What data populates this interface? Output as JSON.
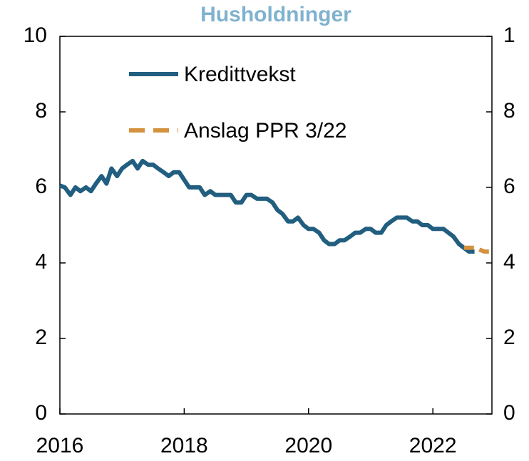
{
  "chart_data": {
    "type": "line",
    "title": "Husholdninger",
    "xlim": [
      2016,
      2022.95
    ],
    "xticks": [
      2016,
      2018,
      2020,
      2022
    ],
    "ylim": [
      0,
      10
    ],
    "yticks": [
      0,
      2,
      4,
      6,
      8,
      10
    ],
    "y2lim": [
      0,
      10
    ],
    "y2ticks": [
      0,
      2,
      4,
      6,
      8,
      {
        "value": 10,
        "label": "1"
      }
    ],
    "legend": "upper left",
    "series": [
      {
        "name": "Kredittvekst",
        "color": "#215e7f",
        "dash": "solid",
        "x": [
          2016.0,
          2016.08,
          2016.17,
          2016.25,
          2016.33,
          2016.42,
          2016.5,
          2016.58,
          2016.67,
          2016.75,
          2016.83,
          2016.92,
          2017.0,
          2017.08,
          2017.17,
          2017.25,
          2017.33,
          2017.42,
          2017.5,
          2017.58,
          2017.67,
          2017.75,
          2017.83,
          2017.92,
          2018.0,
          2018.08,
          2018.17,
          2018.25,
          2018.33,
          2018.42,
          2018.5,
          2018.58,
          2018.67,
          2018.75,
          2018.83,
          2018.92,
          2019.0,
          2019.08,
          2019.17,
          2019.25,
          2019.33,
          2019.42,
          2019.5,
          2019.58,
          2019.67,
          2019.75,
          2019.83,
          2019.92,
          2020.0,
          2020.08,
          2020.17,
          2020.25,
          2020.33,
          2020.42,
          2020.5,
          2020.58,
          2020.67,
          2020.75,
          2020.83,
          2020.92,
          2021.0,
          2021.08,
          2021.17,
          2021.25,
          2021.33,
          2021.42,
          2021.5,
          2021.58,
          2021.67,
          2021.75,
          2021.83,
          2021.92,
          2022.0,
          2022.08,
          2022.17,
          2022.25,
          2022.33,
          2022.42,
          2022.5,
          2022.58,
          2022.67
        ],
        "values": [
          6.05,
          6.0,
          5.8,
          6.0,
          5.9,
          6.0,
          5.9,
          6.1,
          6.3,
          6.1,
          6.5,
          6.3,
          6.5,
          6.6,
          6.7,
          6.5,
          6.7,
          6.6,
          6.6,
          6.5,
          6.4,
          6.3,
          6.4,
          6.4,
          6.2,
          6.0,
          6.0,
          6.0,
          5.8,
          5.9,
          5.8,
          5.8,
          5.8,
          5.8,
          5.6,
          5.6,
          5.8,
          5.8,
          5.7,
          5.7,
          5.7,
          5.6,
          5.4,
          5.3,
          5.1,
          5.1,
          5.2,
          5.0,
          4.9,
          4.9,
          4.8,
          4.6,
          4.5,
          4.5,
          4.6,
          4.6,
          4.7,
          4.8,
          4.8,
          4.9,
          4.9,
          4.8,
          4.8,
          5.0,
          5.1,
          5.2,
          5.2,
          5.2,
          5.1,
          5.1,
          5.0,
          5.0,
          4.9,
          4.9,
          4.9,
          4.8,
          4.7,
          4.5,
          4.4,
          4.3,
          4.3
        ]
      },
      {
        "name": "Anslag PPR 3/22",
        "color": "#d4913e",
        "dash": "dashed",
        "x": [
          2022.5,
          2022.67,
          2022.83,
          2022.95
        ],
        "values": [
          4.4,
          4.4,
          4.3,
          4.3
        ]
      }
    ]
  }
}
